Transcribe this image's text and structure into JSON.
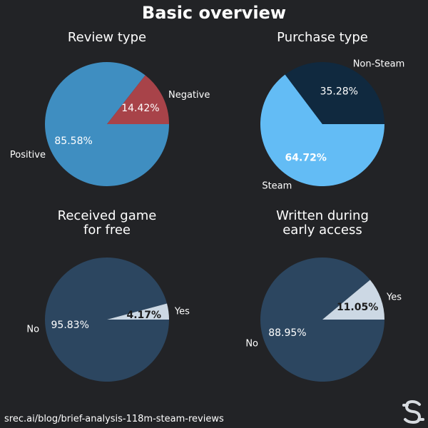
{
  "page": {
    "title": "Basic overview",
    "footer": "srec.ai/blog/brief-analysis-118m-steam-reviews",
    "logo": "srec-logo-icon",
    "background": "#222326"
  },
  "chart_data": [
    {
      "type": "pie",
      "title": [
        "Review type"
      ],
      "slices": [
        {
          "label": "Positive",
          "value": 85.58,
          "pct_label": "85.58%",
          "color": "#3f8ec1",
          "pct_color": "#ffffff",
          "pct_bold": false
        },
        {
          "label": "Negative",
          "value": 14.42,
          "pct_label": "14.42%",
          "color": "#a84349",
          "pct_color": "#ffffff",
          "pct_bold": false
        }
      ]
    },
    {
      "type": "pie",
      "title": [
        "Purchase type"
      ],
      "slices": [
        {
          "label": "Steam",
          "value": 64.72,
          "pct_label": "64.72%",
          "color": "#63bcf5",
          "pct_color": "#ffffff",
          "pct_bold": true
        },
        {
          "label": "Non-Steam",
          "value": 35.28,
          "pct_label": "35.28%",
          "color": "#10293f",
          "pct_color": "#ffffff",
          "pct_bold": false
        }
      ]
    },
    {
      "type": "pie",
      "title": [
        "Received game",
        "for free"
      ],
      "slices": [
        {
          "label": "No",
          "value": 95.83,
          "pct_label": "95.83%",
          "color": "#2c4660",
          "pct_color": "#ffffff",
          "pct_bold": false
        },
        {
          "label": "Yes",
          "value": 4.17,
          "pct_label": "4.17%",
          "color": "#ccd8e4",
          "pct_color": "#1b1b1b",
          "pct_bold": true
        }
      ]
    },
    {
      "type": "pie",
      "title": [
        "Written during",
        "early access"
      ],
      "slices": [
        {
          "label": "No",
          "value": 88.95,
          "pct_label": "88.95%",
          "color": "#2c4660",
          "pct_color": "#ffffff",
          "pct_bold": false
        },
        {
          "label": "Yes",
          "value": 11.05,
          "pct_label": "11.05%",
          "color": "#ccd8e4",
          "pct_color": "#1b1b1b",
          "pct_bold": true
        }
      ]
    }
  ]
}
